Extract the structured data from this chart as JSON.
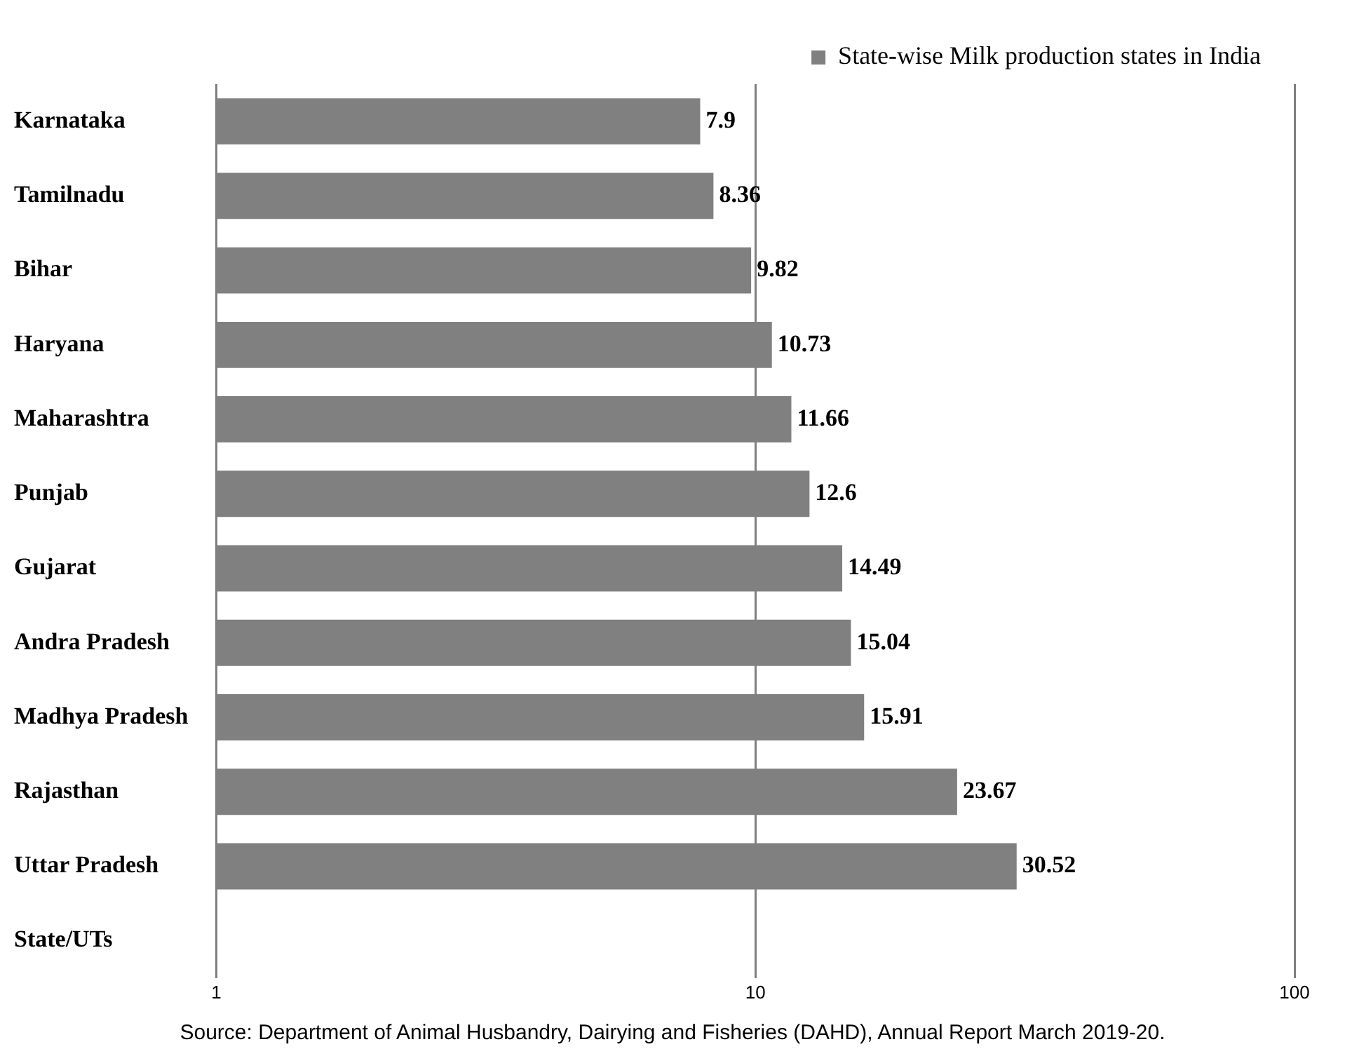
{
  "chart_data": {
    "type": "bar",
    "orientation": "horizontal",
    "log": "x",
    "categories": [
      "Karnataka",
      "Tamilnadu",
      "Bihar",
      "Haryana",
      "Maharashtra",
      "Punjab",
      "Gujarat",
      "Andra Pradesh",
      "Madhya Pradesh",
      "Rajasthan",
      "Uttar Pradesh",
      "State/UTs"
    ],
    "series": [
      {
        "name": "State-wise Milk production states in India",
        "color": "#808080",
        "values": [
          7.9,
          8.36,
          9.82,
          10.73,
          11.66,
          12.6,
          14.49,
          15.04,
          15.91,
          23.67,
          30.52,
          null
        ]
      }
    ],
    "xlim": [
      1,
      100
    ],
    "xticks": [
      1,
      10,
      100
    ],
    "grid": "x",
    "legend": "top right",
    "data_labels": true,
    "annotations": [
      "Source: Department of Animal Husbandry, Dairying and Fisheries (DAHD), Annual Report March 2019-20."
    ]
  }
}
